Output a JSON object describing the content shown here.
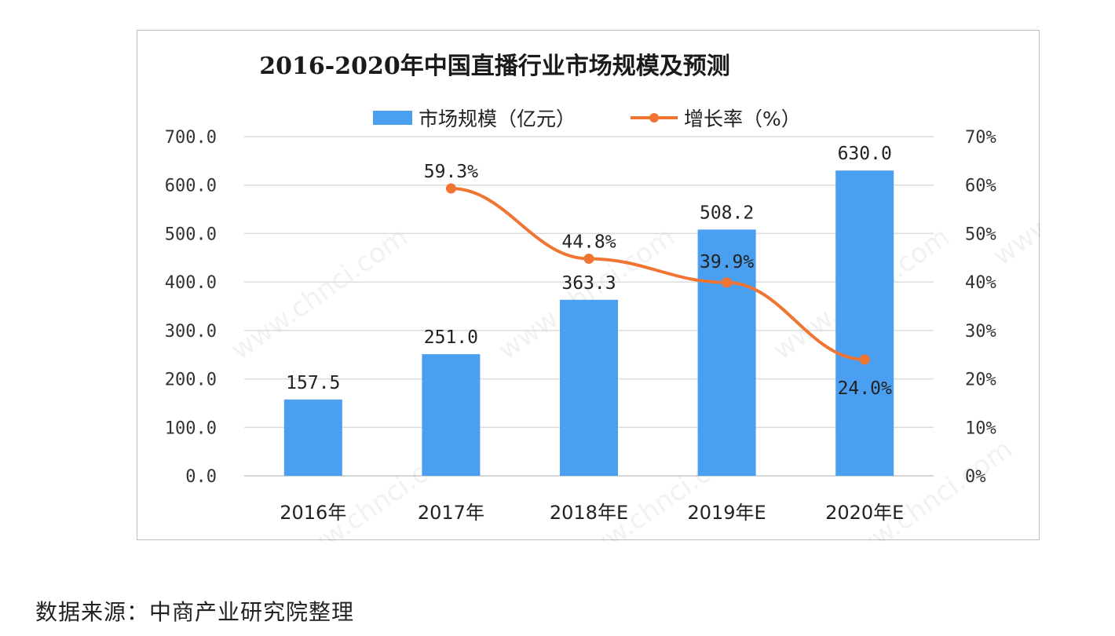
{
  "chart_data": {
    "type": "bar",
    "title": "2016-2020年中国直播行业市场规模及预测",
    "categories": [
      "2016年",
      "2017年",
      "2018年E",
      "2019年E",
      "2020年E"
    ],
    "series": [
      {
        "name": "市场规模（亿元）",
        "type": "bar",
        "axis": "left",
        "color": "#4a9ff0",
        "values": [
          157.5,
          251.0,
          363.3,
          508.2,
          630.0
        ],
        "labels": [
          "157.5",
          "251.0",
          "363.3",
          "508.2",
          "630.0"
        ]
      },
      {
        "name": "增长率（%）",
        "type": "line",
        "axis": "right",
        "color": "#f07432",
        "values": [
          null,
          59.3,
          44.8,
          39.9,
          24.0
        ],
        "labels": [
          "",
          "59.3%",
          "44.8%",
          "39.9%",
          "24.0%"
        ]
      }
    ],
    "y_left": {
      "min": 0,
      "max": 700,
      "step": 100,
      "ticks": [
        "0.0",
        "100.0",
        "200.0",
        "300.0",
        "400.0",
        "500.0",
        "600.0",
        "700.0"
      ]
    },
    "y_right": {
      "min": 0,
      "max": 70,
      "step": 10,
      "ticks": [
        "0%",
        "10%",
        "20%",
        "30%",
        "40%",
        "50%",
        "60%",
        "70%"
      ]
    },
    "grid": true,
    "legend_position": "top-center"
  },
  "source_note": "数据来源：中商产业研究院整理"
}
